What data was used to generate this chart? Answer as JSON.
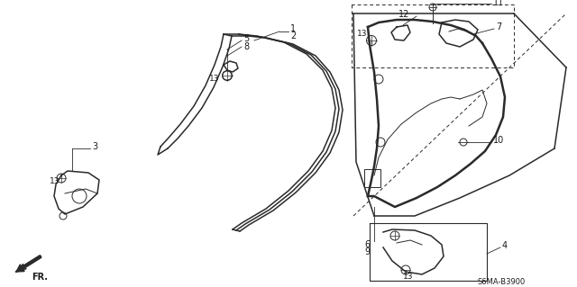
{
  "diagram_code": "S6MA-B3900",
  "background_color": "#ffffff",
  "line_color": "#2a2a2a",
  "text_color": "#1a1a1a",
  "figsize": [
    6.4,
    3.19
  ],
  "dpi": 100
}
